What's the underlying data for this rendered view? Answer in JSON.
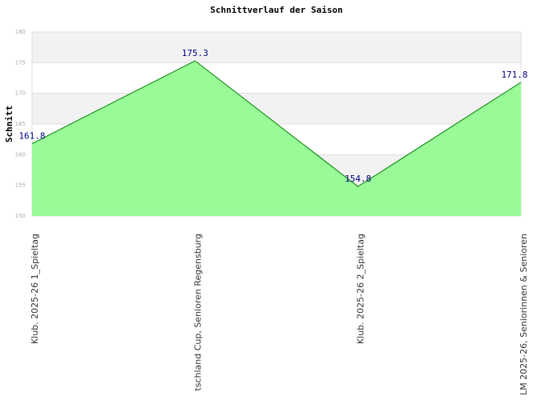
{
  "chart_data": {
    "type": "area",
    "title": "Schnittverlauf der Saison",
    "y_label": "Schnitt",
    "categories": [
      "Klub. 2025-26  1_Spieltag",
      "tschland Cup, Senioren Regensburg",
      "Klub. 2025-26  2_Spieltag",
      "LM 2025-26, Seniorinnen & Senioren"
    ],
    "series": [
      {
        "name": "Schnitt",
        "color": "#98fb98",
        "line_color": "#008000",
        "values": [
          161.8,
          175.3,
          154.8,
          171.8
        ]
      }
    ],
    "ylim": [
      150,
      180
    ],
    "yticks": [
      150,
      155,
      160,
      165,
      170,
      175,
      180
    ],
    "grid": true
  }
}
